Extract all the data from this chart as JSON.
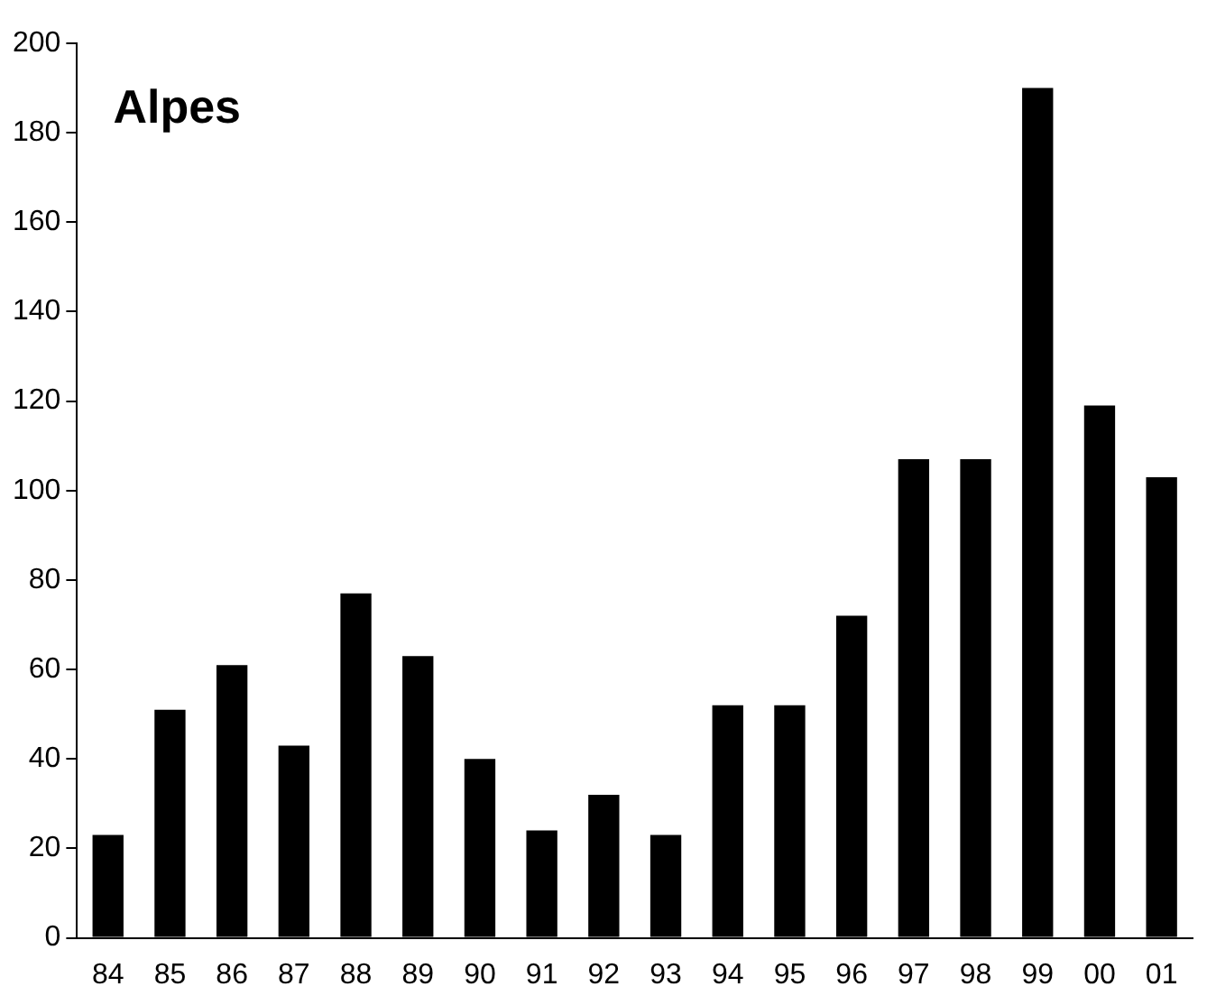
{
  "chart_data": {
    "type": "bar",
    "title": "Alpes",
    "categories": [
      "84",
      "85",
      "86",
      "87",
      "88",
      "89",
      "90",
      "91",
      "92",
      "93",
      "94",
      "95",
      "96",
      "97",
      "98",
      "99",
      "00",
      "01"
    ],
    "values": [
      23,
      51,
      61,
      43,
      77,
      63,
      40,
      24,
      32,
      23,
      52,
      52,
      72,
      107,
      107,
      190,
      119,
      103
    ],
    "color": "#000000",
    "ylim": [
      0,
      200
    ],
    "yticks": [
      0,
      20,
      40,
      60,
      80,
      100,
      120,
      140,
      160,
      180,
      200
    ],
    "grid": false,
    "legend": false
  }
}
